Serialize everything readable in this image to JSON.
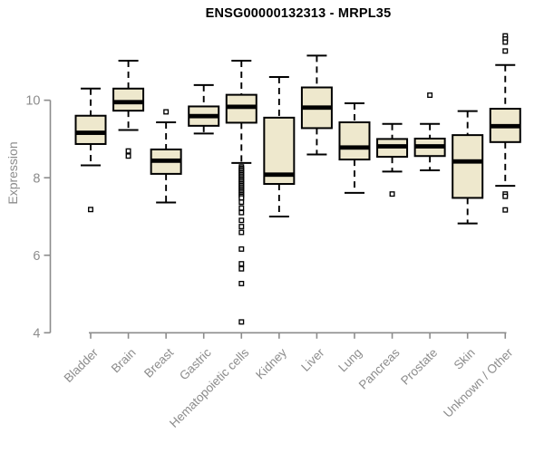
{
  "chart_data": {
    "type": "boxplot",
    "title": "ENSG00000132313 - MRPL35",
    "ylabel": "Expression",
    "xlabel": "",
    "yticks": [
      4,
      6,
      8,
      10
    ],
    "ylim": [
      4,
      11.9
    ],
    "grid": false,
    "legend": null,
    "categories": [
      "Bladder",
      "Brain",
      "Breast",
      "Gastric",
      "Hematopoietic cells",
      "Kidney",
      "Liver",
      "Lung",
      "Pancreas",
      "Prostate",
      "Skin",
      "Unknown / Other"
    ],
    "series": [
      {
        "name": "Bladder",
        "whisker_low": 8.32,
        "q1": 8.87,
        "median": 9.16,
        "q3": 9.6,
        "whisker_high": 10.3,
        "outliers": [
          7.18
        ]
      },
      {
        "name": "Brain",
        "whisker_low": 9.23,
        "q1": 9.73,
        "median": 9.95,
        "q3": 10.3,
        "whisker_high": 11.02,
        "outliers": [
          8.69,
          8.56
        ]
      },
      {
        "name": "Breast",
        "whisker_low": 7.36,
        "q1": 8.1,
        "median": 8.44,
        "q3": 8.73,
        "whisker_high": 9.43,
        "outliers": [
          9.7
        ]
      },
      {
        "name": "Gastric",
        "whisker_low": 9.14,
        "q1": 9.34,
        "median": 9.59,
        "q3": 9.84,
        "whisker_high": 10.39,
        "outliers": []
      },
      {
        "name": "Hematopoietic cells",
        "whisker_low": 8.38,
        "q1": 9.42,
        "median": 9.83,
        "q3": 10.14,
        "whisker_high": 11.02,
        "outliers": [
          8.28,
          8.24,
          8.2,
          8.16,
          8.12,
          8.08,
          8.04,
          8.0,
          7.96,
          7.92,
          7.88,
          7.84,
          7.8,
          7.76,
          7.72,
          7.68,
          7.64,
          7.6,
          7.56,
          7.52,
          7.48,
          7.37,
          7.22,
          7.1,
          6.9,
          6.74,
          6.59,
          6.16,
          5.78,
          5.65,
          5.27,
          4.28
        ]
      },
      {
        "name": "Kidney",
        "whisker_low": 7.0,
        "q1": 7.84,
        "median": 8.08,
        "q3": 9.55,
        "whisker_high": 10.6,
        "outliers": []
      },
      {
        "name": "Liver",
        "whisker_low": 8.6,
        "q1": 9.28,
        "median": 9.81,
        "q3": 10.33,
        "whisker_high": 11.15,
        "outliers": []
      },
      {
        "name": "Lung",
        "whisker_low": 7.61,
        "q1": 8.47,
        "median": 8.78,
        "q3": 9.43,
        "whisker_high": 9.92,
        "outliers": []
      },
      {
        "name": "Pancreas",
        "whisker_low": 8.16,
        "q1": 8.54,
        "median": 8.81,
        "q3": 9.0,
        "whisker_high": 9.39,
        "outliers": [
          7.58
        ]
      },
      {
        "name": "Prostate",
        "whisker_low": 8.19,
        "q1": 8.56,
        "median": 8.81,
        "q3": 9.01,
        "whisker_high": 9.39,
        "outliers": [
          10.13
        ]
      },
      {
        "name": "Skin",
        "whisker_low": 6.82,
        "q1": 7.48,
        "median": 8.42,
        "q3": 9.1,
        "whisker_high": 9.72,
        "outliers": []
      },
      {
        "name": "Unknown / Other",
        "whisker_low": 7.79,
        "q1": 8.92,
        "median": 9.33,
        "q3": 9.78,
        "whisker_high": 10.91,
        "outliers": [
          11.66,
          11.58,
          11.5,
          11.27,
          7.58,
          7.52,
          7.17
        ]
      }
    ],
    "colors": {
      "box_fill": "#EEE8CD",
      "box_stroke": "#000000",
      "median": "#000000",
      "whisker": "#000000",
      "axis": "#8C8C8C",
      "tick_label": "#8C8C8C",
      "title": "#000000",
      "background": "#FFFFFF"
    }
  }
}
